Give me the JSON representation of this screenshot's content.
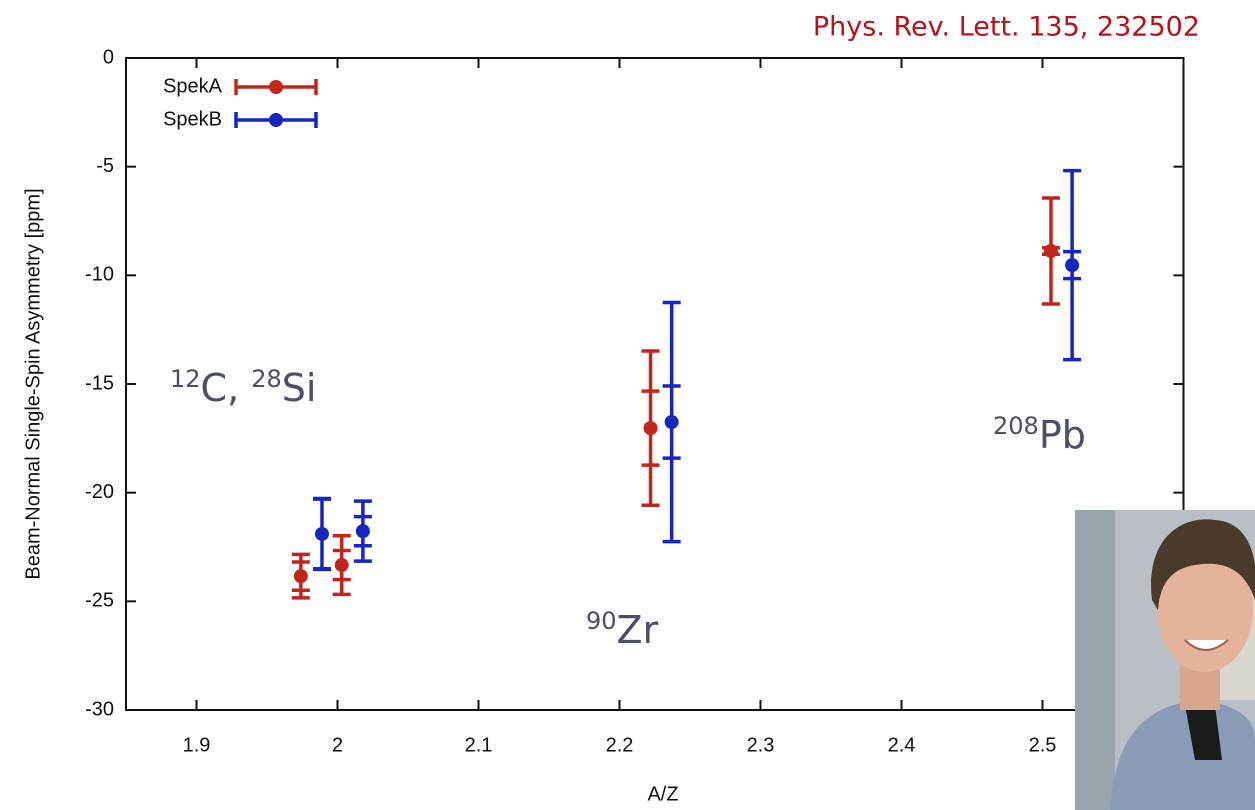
{
  "chart_data": {
    "type": "errorbar",
    "title": "Phys. Rev. Lett. 135, 232502",
    "x_label": "A/Z",
    "y_label": "Beam-Normal Single-Spin Asymmetry [ppm]",
    "xlim": [
      1.85,
      2.6
    ],
    "xticks": [
      1.9,
      2,
      2.1,
      2.2,
      2.3,
      2.4,
      2.5
    ],
    "ylim": [
      -30,
      0
    ],
    "yticks": [
      0,
      -5,
      -10,
      -15,
      -20,
      -25,
      -30
    ],
    "legend": "top-left",
    "series": [
      {
        "name": "SpekA",
        "color": "#c1261b",
        "x": [
          1.974,
          2.003,
          2.222,
          2.506
        ],
        "values": [
          -23.84,
          -23.33,
          -17.03,
          -8.88
        ],
        "errors": [
          1.0,
          1.35,
          3.55,
          2.44
        ],
        "inner_errors": [
          0.65,
          0.67,
          1.7,
          0.15
        ]
      },
      {
        "name": "SpekB",
        "color": "#1626c0",
        "x": [
          1.989,
          2.018,
          2.237,
          2.521
        ],
        "values": [
          -21.9,
          -21.77,
          -16.75,
          -9.53
        ],
        "errors": [
          1.63,
          1.38,
          5.5,
          4.35
        ],
        "inner_errors": [
          1.6,
          0.67,
          1.66,
          0.62
        ]
      }
    ],
    "annotations": [
      {
        "superscripts": [
          "12",
          "28"
        ],
        "texts": [
          "C, ",
          "Si"
        ]
      },
      {
        "superscripts": [
          "90"
        ],
        "texts": [
          "Zr"
        ]
      },
      {
        "superscripts": [
          "208"
        ],
        "texts": [
          "Pb"
        ]
      }
    ]
  }
}
